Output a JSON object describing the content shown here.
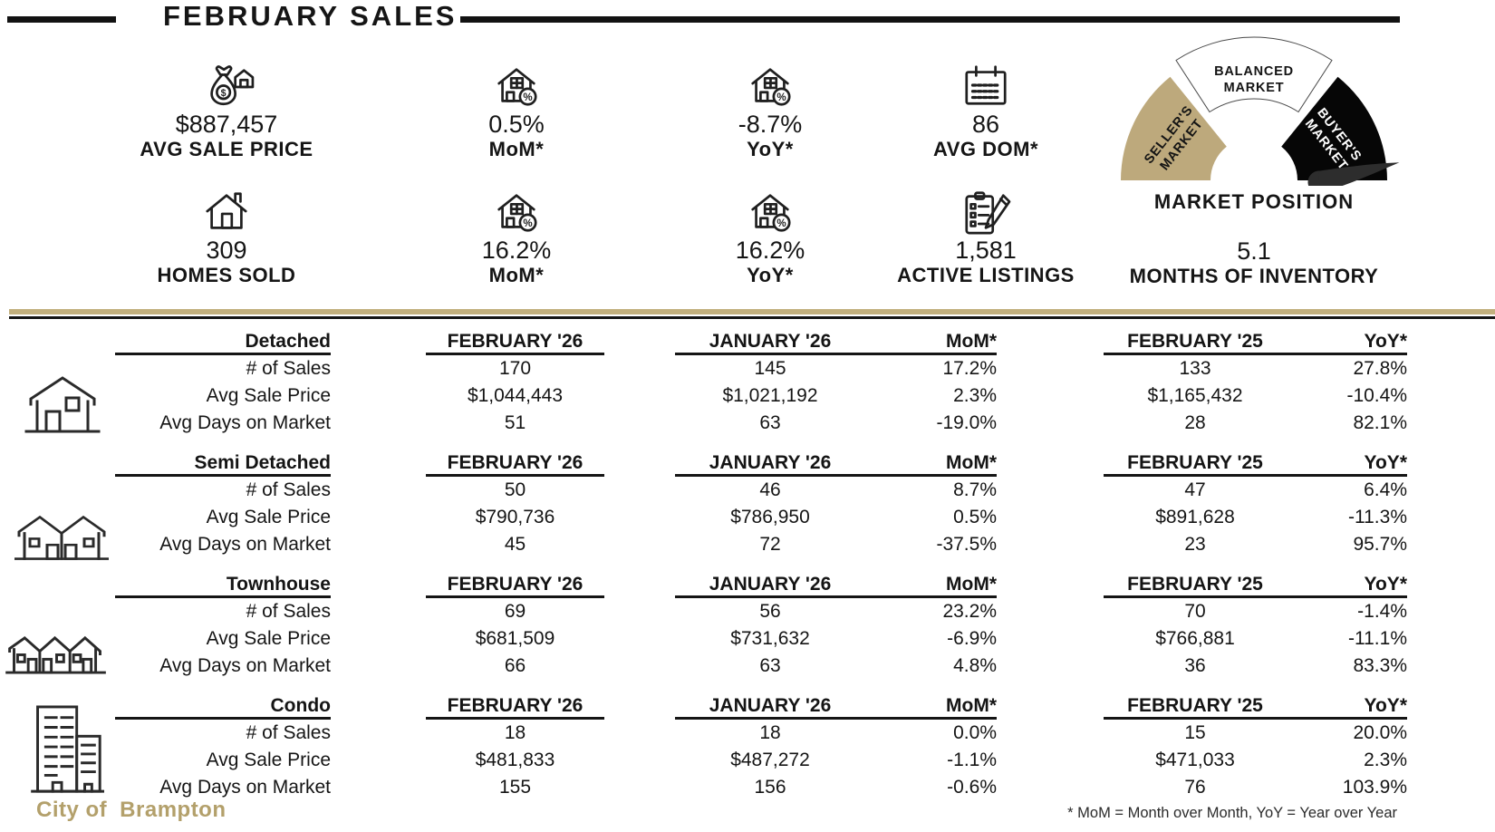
{
  "title": "FEBRUARY SALES",
  "stats": {
    "avg_sale_price": {
      "icon": "money-house-icon",
      "value": "$887,457",
      "label": "AVG SALE PRICE"
    },
    "price_mom": {
      "icon": "house-percent-icon",
      "value": "0.5%",
      "label": "MoM*"
    },
    "price_yoy": {
      "icon": "house-percent-icon",
      "value": "-8.7%",
      "label": "YoY*"
    },
    "avg_dom": {
      "icon": "calendar-icon",
      "value": "86",
      "label": "AVG DOM*"
    },
    "homes_sold": {
      "icon": "house-icon",
      "value": "309",
      "label": "HOMES SOLD"
    },
    "sold_mom": {
      "icon": "house-percent-icon",
      "value": "16.2%",
      "label": "MoM*"
    },
    "sold_yoy": {
      "icon": "house-percent-icon",
      "value": "16.2%",
      "label": "YoY*"
    },
    "active_listings": {
      "icon": "clipboard-pencil-icon",
      "value": "1,581",
      "label": "ACTIVE LISTINGS"
    },
    "months_of_inventory": {
      "value": "5.1",
      "label": "MONTHS OF INVENTORY"
    }
  },
  "gauge": {
    "title": "MARKET POSITION",
    "segments": [
      {
        "line1": "SELLER'S",
        "line2": "MARKET",
        "color": "#bda97c"
      },
      {
        "line1": "BALANCED",
        "line2": "MARKET",
        "color": "#ffffff"
      },
      {
        "line1": "BUYER'S",
        "line2": "MARKET",
        "color": "#060606"
      }
    ],
    "needle_points_to": "BUYER'S MARKET"
  },
  "table": {
    "columns": [
      "FEBRUARY '26",
      "JANUARY '26",
      "MoM*",
      "FEBRUARY '25",
      "YoY*"
    ],
    "row_labels": [
      "# of Sales",
      "Avg Sale Price",
      "Avg Days on Market"
    ],
    "sections": [
      {
        "name": "Detached",
        "icon": "detached-house-icon",
        "rows": [
          [
            "170",
            "145",
            "17.2%",
            "133",
            "27.8%"
          ],
          [
            "$1,044,443",
            "$1,021,192",
            "2.3%",
            "$1,165,432",
            "-10.4%"
          ],
          [
            "51",
            "63",
            "-19.0%",
            "28",
            "82.1%"
          ]
        ]
      },
      {
        "name": "Semi Detached",
        "icon": "semi-detached-icon",
        "rows": [
          [
            "50",
            "46",
            "8.7%",
            "47",
            "6.4%"
          ],
          [
            "$790,736",
            "$786,950",
            "0.5%",
            "$891,628",
            "-11.3%"
          ],
          [
            "45",
            "72",
            "-37.5%",
            "23",
            "95.7%"
          ]
        ]
      },
      {
        "name": "Townhouse",
        "icon": "townhouse-icon",
        "rows": [
          [
            "69",
            "56",
            "23.2%",
            "70",
            "-1.4%"
          ],
          [
            "$681,509",
            "$731,632",
            "-6.9%",
            "$766,881",
            "-11.1%"
          ],
          [
            "66",
            "63",
            "4.8%",
            "36",
            "83.3%"
          ]
        ]
      },
      {
        "name": "Condo",
        "icon": "condo-icon",
        "rows": [
          [
            "18",
            "18",
            "0.0%",
            "15",
            "20.0%"
          ],
          [
            "$481,833",
            "$487,272",
            "-1.1%",
            "$471,033",
            "2.3%"
          ],
          [
            "155",
            "156",
            "-0.6%",
            "76",
            "103.9%"
          ]
        ]
      }
    ]
  },
  "footer": {
    "logo_prefix": "City of",
    "logo_city": "Brampton",
    "note": "* MoM = Month over Month, YoY = Year over Year"
  },
  "colors": {
    "accent_tan": "#bfa97a",
    "divider_tan": "#c2b07e",
    "black": "#141414"
  }
}
